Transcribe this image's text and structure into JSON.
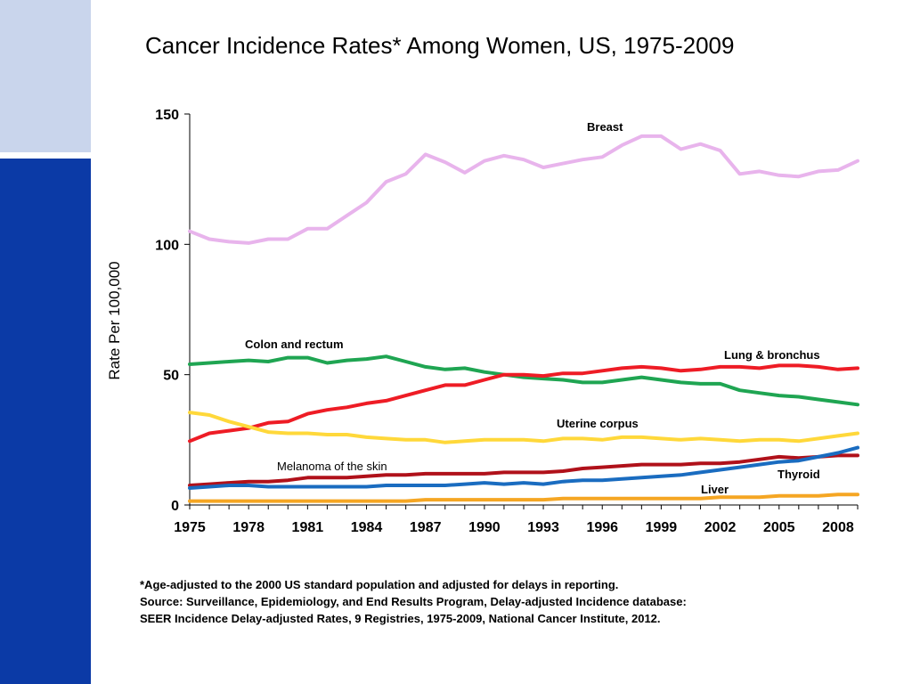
{
  "title": "Cancer Incidence Rates* Among Women, US, 1975-2009",
  "footnotes": [
    "*Age-adjusted to the 2000 US standard population and adjusted for delays in reporting.",
    "Source: Surveillance, Epidemiology, and End Results Program, Delay-adjusted Incidence database:",
    "SEER Incidence Delay-adjusted Rates, 9 Registries, 1975-2009, National Cancer Institute, 2012."
  ],
  "colors": {
    "band_light": "#c9d5ec",
    "band_dark": "#0b3aa6"
  },
  "chart_data": {
    "type": "line",
    "ylabel": "Rate Per 100,000",
    "xlabel": "",
    "ylim": [
      0,
      150
    ],
    "xlim": [
      1975,
      2009
    ],
    "yticks": [
      0,
      50,
      100,
      150
    ],
    "xticks": [
      1975,
      1978,
      1981,
      1984,
      1987,
      1990,
      1993,
      1996,
      1999,
      2002,
      2005,
      2008
    ],
    "grid": false,
    "legend": "labels placed next to lines",
    "x": [
      1975,
      1976,
      1977,
      1978,
      1979,
      1980,
      1981,
      1982,
      1983,
      1984,
      1985,
      1986,
      1987,
      1988,
      1989,
      1990,
      1991,
      1992,
      1993,
      1994,
      1995,
      1996,
      1997,
      1998,
      1999,
      2000,
      2001,
      2002,
      2003,
      2004,
      2005,
      2006,
      2007,
      2008,
      2009
    ],
    "series": [
      {
        "name": "Breast",
        "color": "#e8b4ec",
        "values": [
          105.0,
          102.0,
          101.0,
          100.5,
          102.0,
          102.0,
          106.0,
          106.0,
          111.0,
          116.0,
          124.0,
          127.0,
          134.5,
          131.5,
          127.5,
          132.0,
          134.0,
          132.5,
          129.5,
          131.0,
          132.5,
          133.5,
          138.0,
          141.5,
          141.5,
          136.5,
          138.5,
          136.0,
          127.0,
          128.0,
          126.5,
          126.0,
          128.0,
          128.5,
          132.0
        ]
      },
      {
        "name": "Colon and rectum",
        "color": "#1fa552",
        "values": [
          54.0,
          54.5,
          55.0,
          55.5,
          55.0,
          56.5,
          56.5,
          54.5,
          55.5,
          56.0,
          57.0,
          55.0,
          53.0,
          52.0,
          52.5,
          51.0,
          50.0,
          49.0,
          48.5,
          48.0,
          47.0,
          47.0,
          48.0,
          49.0,
          48.0,
          47.0,
          46.5,
          46.5,
          44.0,
          43.0,
          42.0,
          41.5,
          40.5,
          39.5,
          38.5
        ]
      },
      {
        "name": "Lung & bronchus",
        "color": "#ee1c25",
        "values": [
          24.5,
          27.5,
          28.5,
          29.5,
          31.5,
          32.0,
          35.0,
          36.5,
          37.5,
          39.0,
          40.0,
          42.0,
          44.0,
          46.0,
          46.0,
          48.0,
          50.0,
          50.0,
          49.5,
          50.5,
          50.5,
          51.5,
          52.5,
          53.0,
          52.5,
          51.5,
          52.0,
          53.0,
          53.0,
          52.5,
          53.5,
          53.5,
          53.0,
          52.0,
          52.5
        ]
      },
      {
        "name": "Uterine corpus",
        "color": "#ffd83a",
        "values": [
          35.5,
          34.5,
          32.0,
          30.0,
          28.0,
          27.5,
          27.5,
          27.0,
          27.0,
          26.0,
          25.5,
          25.0,
          25.0,
          24.0,
          24.5,
          25.0,
          25.0,
          25.0,
          24.5,
          25.5,
          25.5,
          25.0,
          26.0,
          26.0,
          25.5,
          25.0,
          25.5,
          25.0,
          24.5,
          25.0,
          25.0,
          24.5,
          25.5,
          26.5,
          27.5
        ]
      },
      {
        "name": "Melanoma of the skin",
        "color": "#b0111a",
        "values": [
          7.5,
          8.0,
          8.5,
          9.0,
          9.0,
          9.5,
          10.5,
          10.5,
          10.5,
          11.0,
          11.5,
          11.5,
          12.0,
          12.0,
          12.0,
          12.0,
          12.5,
          12.5,
          12.5,
          13.0,
          14.0,
          14.5,
          15.0,
          15.5,
          15.5,
          15.5,
          16.0,
          16.0,
          16.5,
          17.5,
          18.5,
          18.0,
          18.5,
          19.0,
          19.0
        ]
      },
      {
        "name": "Thyroid",
        "color": "#1a6cc0",
        "values": [
          6.5,
          7.0,
          7.5,
          7.5,
          7.0,
          7.0,
          7.0,
          7.0,
          7.0,
          7.0,
          7.5,
          7.5,
          7.5,
          7.5,
          8.0,
          8.5,
          8.0,
          8.5,
          8.0,
          9.0,
          9.5,
          9.5,
          10.0,
          10.5,
          11.0,
          11.5,
          12.5,
          13.5,
          14.5,
          15.5,
          16.5,
          17.0,
          18.5,
          20.0,
          22.0
        ]
      },
      {
        "name": "Liver",
        "color": "#f5a623",
        "values": [
          1.5,
          1.5,
          1.5,
          1.5,
          1.5,
          1.5,
          1.5,
          1.5,
          1.5,
          1.5,
          1.5,
          1.5,
          2.0,
          2.0,
          2.0,
          2.0,
          2.0,
          2.0,
          2.0,
          2.5,
          2.5,
          2.5,
          2.5,
          2.5,
          2.5,
          2.5,
          2.5,
          3.0,
          3.0,
          3.0,
          3.5,
          3.5,
          3.5,
          4.0,
          4.0
        ]
      }
    ]
  }
}
